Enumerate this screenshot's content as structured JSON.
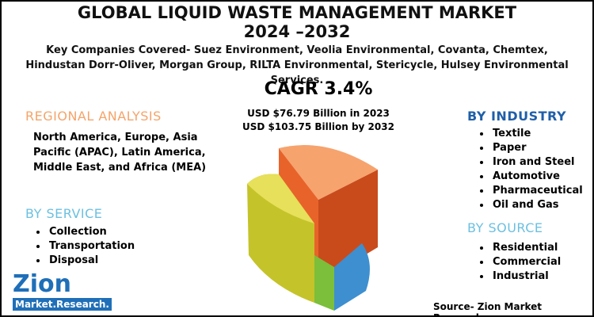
{
  "header": {
    "title_lines": [
      "GLOBAL LIQUID WASTE MANAGEMENT MARKET",
      "2024 –2032"
    ],
    "subtitle": "Key Companies Covered- Suez Environment, Veolia Environmental, Covanta, Chemtex, Hindustan Dorr-Oliver, Morgan Group, RILTA Environmental, Stericycle, Hulsey Environmental Services."
  },
  "cagr": {
    "label": "CAGR 3.4%",
    "value_2023": "USD $76.79 Billion in 2023",
    "value_2032": "USD $103.75 Billion by 2032"
  },
  "regional": {
    "heading": "REGIONAL ANALYSIS",
    "text": "North America, Europe, Asia Pacific (APAC), Latin America, Middle East, and Africa (MEA)"
  },
  "service": {
    "heading": "BY SERVICE",
    "items": [
      "Collection",
      "Transportation",
      "Disposal"
    ]
  },
  "industry": {
    "heading": "BY  INDUSTRY",
    "items": [
      "Textile",
      "Paper",
      "Iron and Steel",
      "Automotive",
      "Pharmaceutical",
      "Oil and Gas"
    ]
  },
  "source_segment": {
    "heading": "BY SOURCE",
    "items": [
      "Residential",
      "Commercial",
      "Industrial"
    ]
  },
  "logo": {
    "name": "Zion",
    "tagline": "Market.Research."
  },
  "footer": {
    "source": "Source- Zion Market Research"
  }
}
